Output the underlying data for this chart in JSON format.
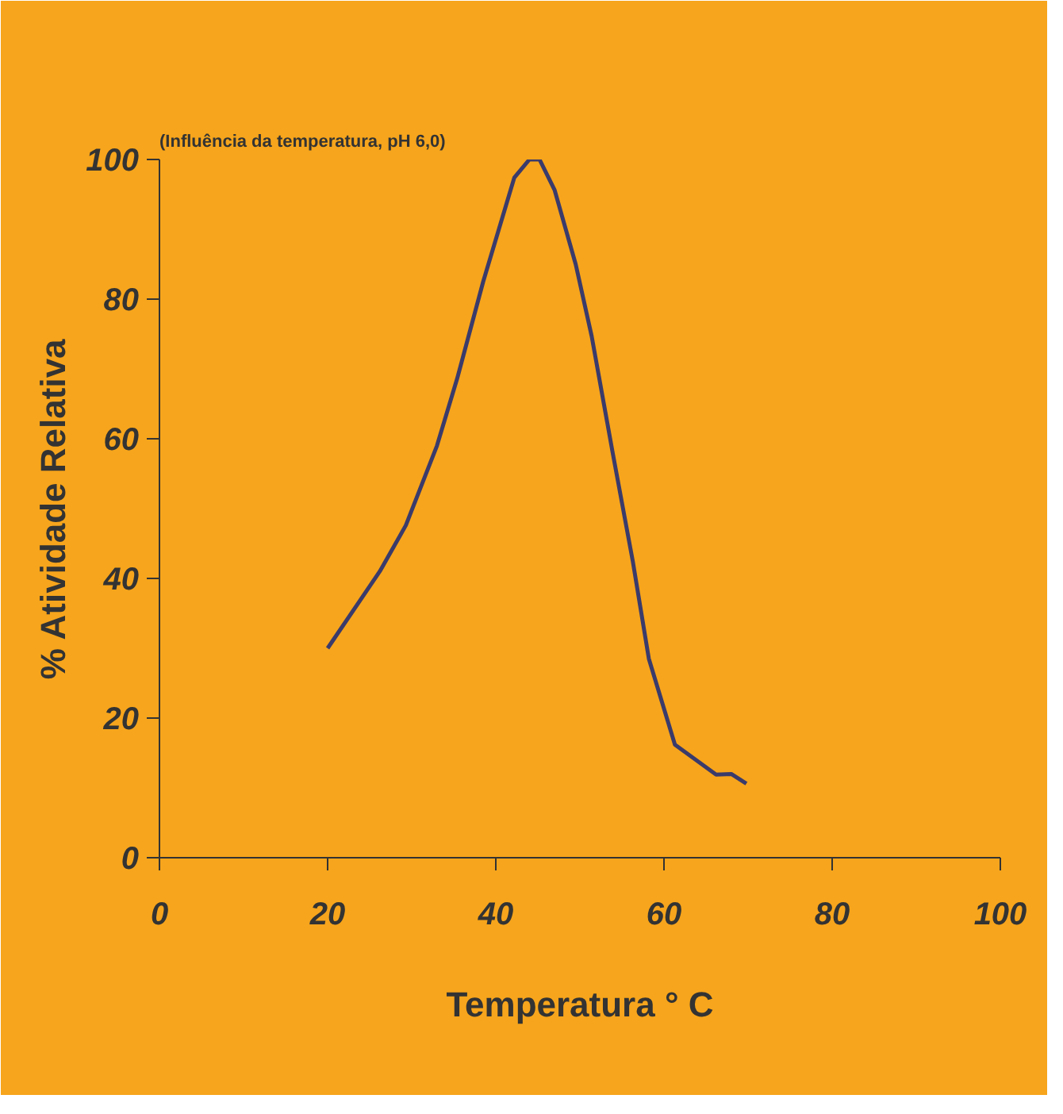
{
  "chart_data": {
    "type": "line",
    "title": "(Influência da temperatura, pH 6,0)",
    "xlabel": "Temperatura ° C",
    "ylabel": "% Atividade Relativa",
    "x": [
      20,
      26.2,
      29.3,
      33,
      35.4,
      38.5,
      42.2,
      44,
      45.2,
      47,
      49.5,
      51.4,
      53.9,
      56.3,
      58.2,
      61.3,
      66.2,
      68,
      69.8
    ],
    "series": [
      {
        "color": "#3b3b6b",
        "values": [
          30,
          41,
          47.6,
          59,
          68.6,
          82.5,
          97.4,
          100,
          100,
          95.6,
          85,
          74.7,
          58,
          42.4,
          28.5,
          16.2,
          11.9,
          12,
          10.6
        ]
      }
    ],
    "xlim": [
      0,
      100
    ],
    "xticks": [
      0,
      20,
      40,
      60,
      80,
      100
    ],
    "ylim": [
      0,
      100
    ],
    "yticks": [
      0,
      20,
      40,
      60,
      80,
      100
    ],
    "grid": false
  }
}
